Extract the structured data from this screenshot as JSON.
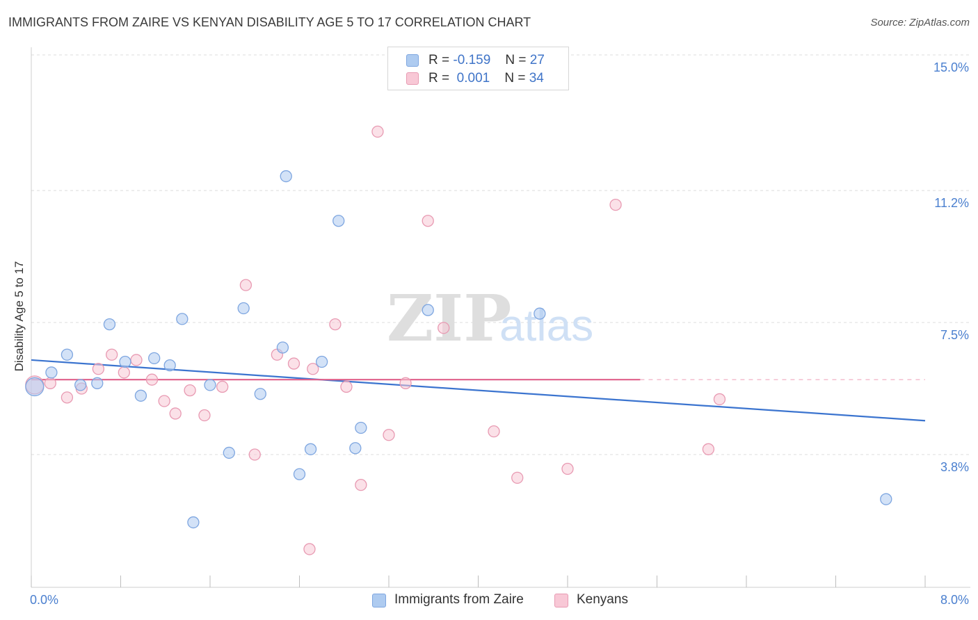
{
  "title": "IMMIGRANTS FROM ZAIRE VS KENYAN DISABILITY AGE 5 TO 17 CORRELATION CHART",
  "source": "Source: ZipAtlas.com",
  "watermark": {
    "zip": "ZIP",
    "atlas": "atlas"
  },
  "legend": {
    "rows": [
      {
        "r_label": "R =",
        "r_value": "-0.159",
        "n_label": "N =",
        "n_value": "27",
        "color": "#aecbf0",
        "border": "#7ea6e0"
      },
      {
        "r_label": "R =",
        "r_value": "0.001",
        "n_label": "N =",
        "n_value": "34",
        "color": "#f8c8d6",
        "border": "#e89ab2"
      }
    ]
  },
  "bottom_legend": [
    {
      "label": "Immigrants from Zaire",
      "color": "#aecbf0",
      "border": "#7ea6e0"
    },
    {
      "label": "Kenyans",
      "color": "#f8c8d6",
      "border": "#e89ab2"
    }
  ],
  "chart_data": {
    "type": "scatter",
    "title": "IMMIGRANTS FROM ZAIRE VS KENYAN DISABILITY AGE 5 TO 17 CORRELATION CHART",
    "xlabel": "",
    "ylabel": "Disability Age 5 to 17",
    "xlim": [
      0,
      8
    ],
    "ylim": [
      0.5,
      15.5
    ],
    "x_tick_labels": [
      "0.0%",
      "8.0%"
    ],
    "y_ticks": [
      3.8,
      7.5,
      11.2,
      15.0
    ],
    "y_tick_labels": [
      "3.8%",
      "7.5%",
      "11.2%",
      "15.0%"
    ],
    "grid": "horizontal dashed",
    "legend_position": "top-center",
    "series": [
      {
        "name": "Immigrants from Zaire",
        "color": "#7ea6e0",
        "fill": "#aecbf0",
        "line_color": "#3b74cf",
        "trend": {
          "x0": 0.0,
          "y0": 6.45,
          "x1": 8.0,
          "y1": 4.75,
          "dashed_to": null
        },
        "points": [
          [
            0.03,
            5.7
          ],
          [
            0.18,
            6.1
          ],
          [
            0.32,
            6.6
          ],
          [
            0.44,
            5.75
          ],
          [
            0.59,
            5.8
          ],
          [
            0.7,
            7.45
          ],
          [
            0.84,
            6.4
          ],
          [
            0.98,
            5.45
          ],
          [
            1.1,
            6.5
          ],
          [
            1.24,
            6.3
          ],
          [
            1.35,
            7.6
          ],
          [
            1.45,
            1.9
          ],
          [
            1.6,
            5.75
          ],
          [
            1.77,
            3.85
          ],
          [
            1.9,
            7.9
          ],
          [
            2.05,
            5.5
          ],
          [
            2.25,
            6.8
          ],
          [
            2.28,
            11.6
          ],
          [
            2.4,
            3.25
          ],
          [
            2.5,
            3.95
          ],
          [
            2.6,
            6.4
          ],
          [
            2.75,
            10.35
          ],
          [
            2.9,
            3.98
          ],
          [
            2.95,
            4.55
          ],
          [
            3.55,
            7.85
          ],
          [
            4.55,
            7.75
          ],
          [
            7.65,
            2.55
          ]
        ]
      },
      {
        "name": "Kenyans",
        "color": "#e89ab2",
        "fill": "#f8c8d6",
        "line_color": "#e0608a",
        "trend": {
          "x0": 0.0,
          "y0": 5.9,
          "x1": 5.45,
          "y1": 5.9,
          "dashed_to": 8.0
        },
        "points": [
          [
            0.03,
            5.75
          ],
          [
            0.17,
            5.8
          ],
          [
            0.32,
            5.4
          ],
          [
            0.45,
            5.65
          ],
          [
            0.6,
            6.2
          ],
          [
            0.72,
            6.6
          ],
          [
            0.83,
            6.1
          ],
          [
            0.94,
            6.45
          ],
          [
            1.08,
            5.9
          ],
          [
            1.19,
            5.3
          ],
          [
            1.29,
            4.95
          ],
          [
            1.42,
            5.6
          ],
          [
            1.55,
            4.9
          ],
          [
            1.71,
            5.7
          ],
          [
            1.92,
            8.55
          ],
          [
            2.0,
            3.8
          ],
          [
            2.2,
            6.6
          ],
          [
            2.35,
            6.35
          ],
          [
            2.49,
            1.15
          ],
          [
            2.52,
            6.2
          ],
          [
            2.72,
            7.45
          ],
          [
            2.82,
            5.7
          ],
          [
            2.95,
            2.95
          ],
          [
            3.1,
            12.85
          ],
          [
            3.2,
            4.35
          ],
          [
            3.35,
            5.8
          ],
          [
            3.55,
            10.35
          ],
          [
            3.69,
            7.35
          ],
          [
            4.14,
            4.45
          ],
          [
            4.35,
            3.15
          ],
          [
            4.8,
            3.4
          ],
          [
            5.23,
            10.8
          ],
          [
            6.06,
            3.95
          ],
          [
            6.16,
            5.35
          ]
        ]
      }
    ]
  }
}
